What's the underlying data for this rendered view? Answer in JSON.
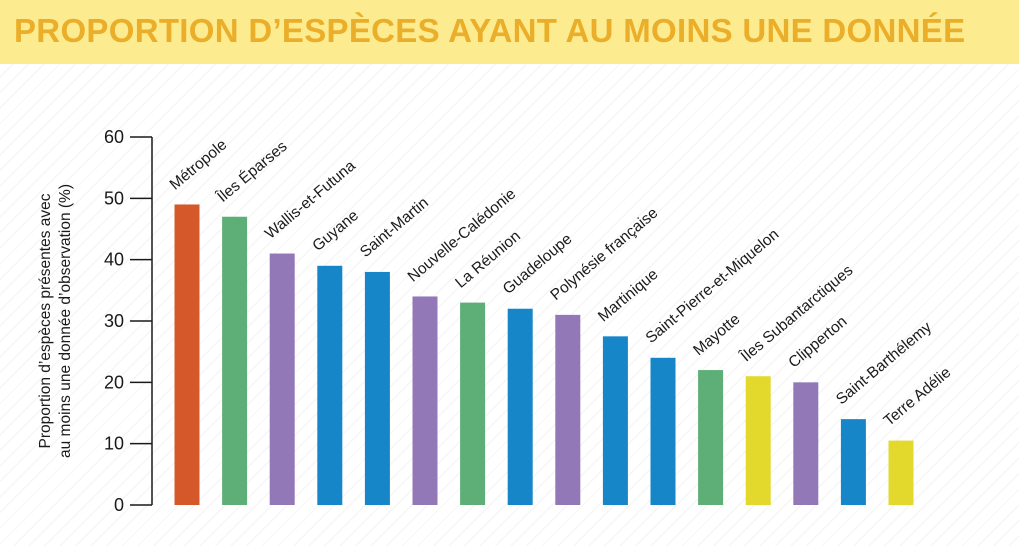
{
  "title": "PROPORTION D’ESPÈCES AYANT AU MOINS UNE DONNÉE",
  "colors": {
    "orange": "#d4582a",
    "green": "#5eae78",
    "purple": "#9278b6",
    "blue": "#1686c9",
    "yellow": "#e3d92d",
    "title_band": "#fcec8f",
    "title_text": "#ebae2a"
  },
  "chart_data": {
    "type": "bar",
    "title": "PROPORTION D’ESPÈCES AYANT AU MOINS UNE DONNÉE",
    "ylabel": [
      "Proportion d’espèces présentes avec",
      "au moins une donnée d’observation (%)"
    ],
    "xlabel": "",
    "ylim": [
      0,
      60
    ],
    "yticks": [
      0,
      10,
      20,
      30,
      40,
      50,
      60
    ],
    "grid": false,
    "categories": [
      "Métropole",
      "Îles Éparses",
      "Wallis-et-Futuna",
      "Guyane",
      "Saint-Martin",
      "Nouvelle-Calédonie",
      "La Réunion",
      "Guadeloupe",
      "Polynésie française",
      "Martinique",
      "Saint-Pierre-et-Miquelon",
      "Mayotte",
      "Îles Subantarctiques",
      "Clipperton",
      "Saint-Barthélemy",
      "Terre Adélie"
    ],
    "values": [
      49,
      47,
      41,
      39,
      38,
      34,
      33,
      32,
      31,
      27.5,
      24,
      22,
      21,
      20,
      14,
      10.5
    ],
    "bar_colors": [
      "orange",
      "green",
      "purple",
      "blue",
      "blue",
      "purple",
      "green",
      "blue",
      "purple",
      "blue",
      "blue",
      "green",
      "yellow",
      "purple",
      "blue",
      "yellow"
    ]
  }
}
